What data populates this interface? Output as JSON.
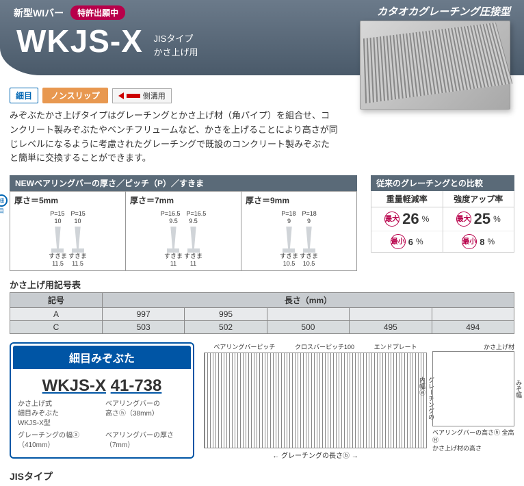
{
  "header": {
    "top_right": "カタオカグレーチング圧接型",
    "top_left": "新型WIバー",
    "patent": "特許出願中",
    "title": "WKJS-X",
    "sub1": "JISタイプ",
    "sub2": "かさ上げ用"
  },
  "tags": {
    "fine": "細目",
    "nonslip": "ノンスリップ",
    "side": "側溝用"
  },
  "description": "みぞぶたかさ上げタイプはグレーチングとかさ上げ材（角パイプ）を組合せ、コンクリート製みぞぶたやベンチフリュームなど、かさを上げることにより高さが同じレベルになるように考慮されたグレーチングで既設のコンクリート製みぞぶたと簡単に交換することができます。",
  "bearing": {
    "header": "NEWベアリングバーの厚さ／ピッチ（P）／すきま",
    "cols": [
      {
        "thick": "厚さ＝5mm",
        "p": "P=15",
        "gap_top": "10",
        "gap_sub": "すきま",
        "gap_bot": "11.5"
      },
      {
        "thick": "厚さ＝7mm",
        "p": "P=16.5",
        "gap_top": "9.5",
        "gap_sub": "すきま",
        "gap_bot": "11"
      },
      {
        "thick": "厚さ＝9mm",
        "p": "P=18",
        "gap_top": "9",
        "gap_sub": "すきま",
        "gap_bot": "10.5"
      }
    ]
  },
  "compare": {
    "header": "従来のグレーチングとの比較",
    "col1": {
      "title": "重量軽減率",
      "max": "26",
      "min": "6"
    },
    "col2": {
      "title": "強度アップ率",
      "max": "25",
      "min": "8"
    },
    "max_label": "最大",
    "min_label": "最小",
    "pct": "%"
  },
  "code_table": {
    "title": "かさ上げ用記号表",
    "header_code": "記号",
    "header_length": "長さ（mm）",
    "rows": [
      {
        "code": "A",
        "vals": [
          "997",
          "995",
          "",
          "",
          ""
        ]
      },
      {
        "code": "C",
        "vals": [
          "503",
          "502",
          "500",
          "495",
          "494"
        ]
      }
    ]
  },
  "product_box": {
    "header": "細目みぞぶた",
    "code_main": "WKJS-X",
    "code_num": "41-738",
    "legend": {
      "l1": "かさ上げ式",
      "l2": "細目みぞぶた",
      "l3": "WKJS-X型",
      "r1": "ベアリングバーの",
      "r2": "高さⓗ（38mm）",
      "b1": "グレーチングの幅ⓐ（410mm）",
      "b2": "ベアリングバーの厚さ（7mm）"
    }
  },
  "diagram": {
    "top_labels": [
      "ベアリングバーピッチ",
      "クロスバーピッチ100",
      "エンドプレート"
    ],
    "bottom_label": "グレーチングの長さⓑ",
    "cross_top": "かさ上げ材",
    "cross_v1": "グレーチングの内幅ⓐ",
    "cross_v2": "みぞ幅",
    "cross_b1": "ベアリングバーの高さⓗ",
    "cross_b2": "全高Ⓗ",
    "cross_b3": "かさ上げ材の高さ"
  },
  "jis": "JISタイプ",
  "colors": {
    "header_bg": "#5a6a78",
    "accent_blue": "#0055a5",
    "accent_red": "#b8004a",
    "accent_orange": "#e89850"
  }
}
